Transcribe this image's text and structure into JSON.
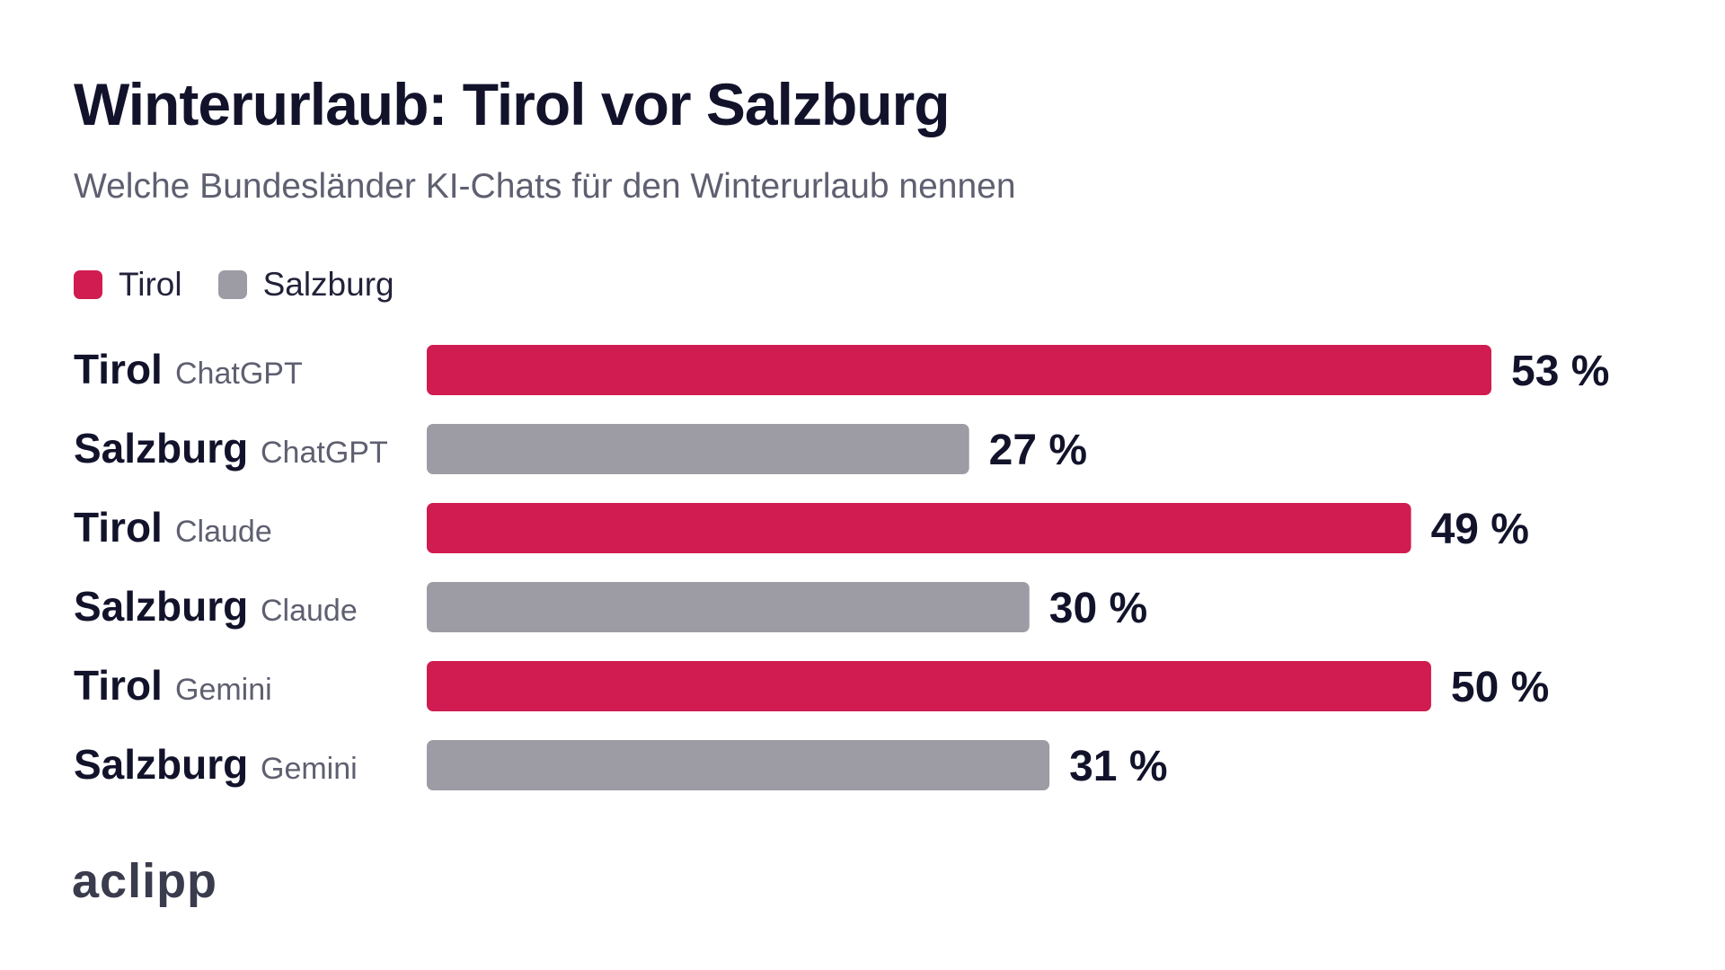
{
  "chart_data": {
    "type": "bar",
    "orientation": "horizontal",
    "title": "Winterurlaub: Tirol vor Salzburg",
    "subtitle": "Welche Bundesländer KI-Chats für den Winterurlaub nennen",
    "legend": [
      {
        "label": "Tirol",
        "color": "#d01c50"
      },
      {
        "label": "Salzburg",
        "color": "#9d9ca5"
      }
    ],
    "legend_placement": "top-left",
    "grid": false,
    "unit": " %",
    "xlim": [
      0,
      53
    ],
    "bars": [
      {
        "label": "Tirol",
        "sublabel": "ChatGPT",
        "value": 53,
        "series": "Tirol",
        "value_label": "53 %"
      },
      {
        "label": "Salzburg",
        "sublabel": "ChatGPT",
        "value": 27,
        "series": "Salzburg",
        "value_label": "27 %"
      },
      {
        "label": "Tirol",
        "sublabel": "Claude",
        "value": 49,
        "series": "Tirol",
        "value_label": "49 %"
      },
      {
        "label": "Salzburg",
        "sublabel": "Claude",
        "value": 30,
        "series": "Salzburg",
        "value_label": "30 %"
      },
      {
        "label": "Tirol",
        "sublabel": "Gemini",
        "value": 50,
        "series": "Tirol",
        "value_label": "50 %"
      },
      {
        "label": "Salzburg",
        "sublabel": "Gemini",
        "value": 31,
        "series": "Salzburg",
        "value_label": "31 %"
      }
    ]
  },
  "colors": {
    "Tirol": "#d01c50",
    "Salzburg": "#9d9ca5"
  },
  "brand": {
    "logo_text": "aclipp"
  }
}
